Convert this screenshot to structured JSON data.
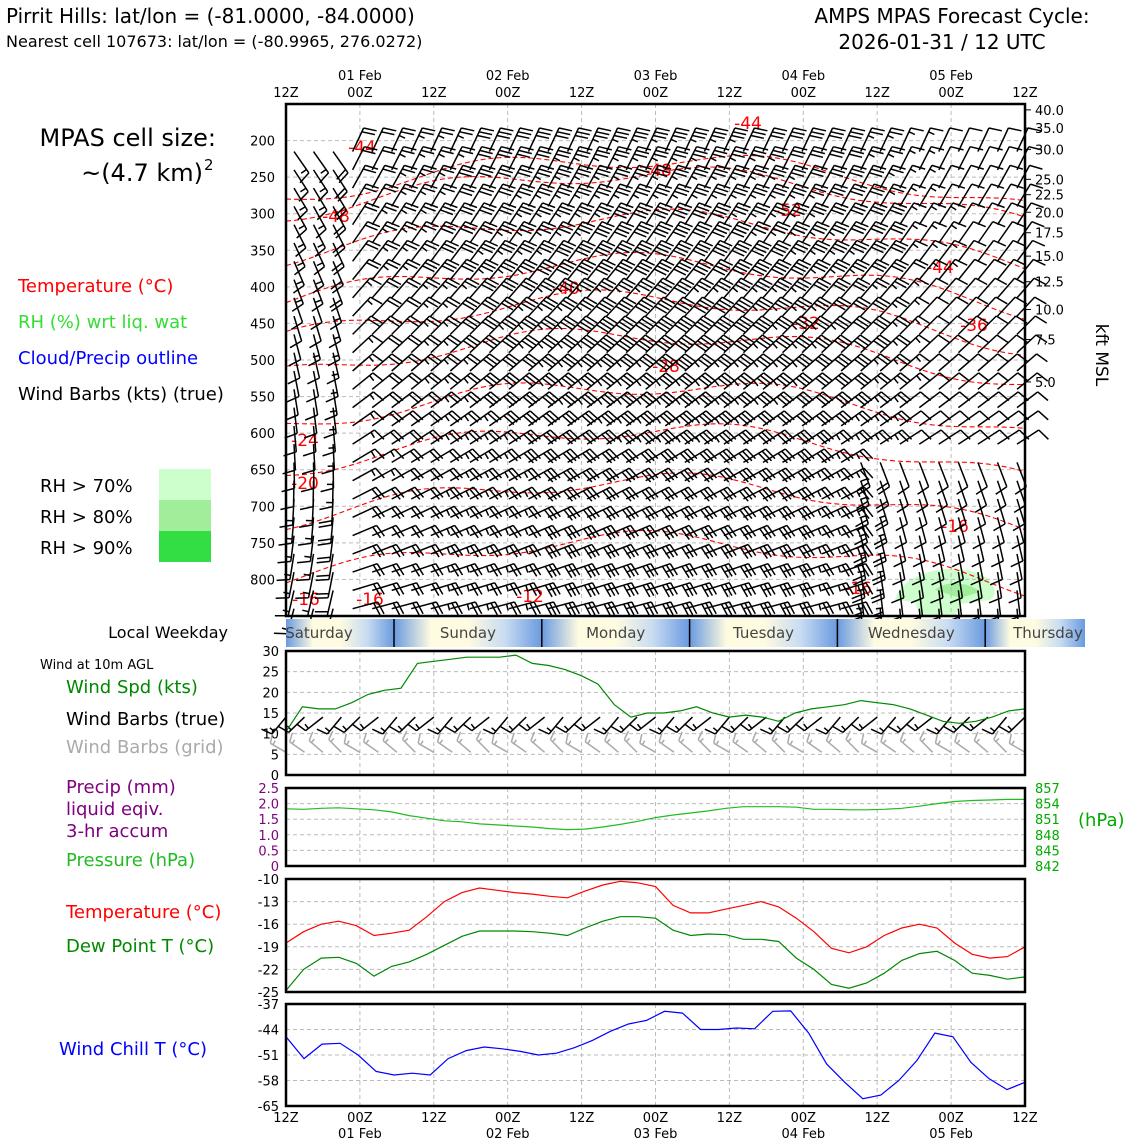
{
  "header": {
    "title": "Pirrit Hills: lat/lon = (-81.0000, -84.0000)",
    "subtitle": "Nearest cell 107673: lat/lon = (-80.9965, 276.0272)",
    "cycle_label": "AMPS MPAS Forecast Cycle:",
    "cycle_time": "2026-01-31 / 12 UTC"
  },
  "cell_size": {
    "line1": "MPAS cell size:",
    "line2": "~(4.7 km)",
    "sup": "2"
  },
  "legend_main": [
    {
      "text": "Temperature (°C)",
      "color": "#ff0000"
    },
    {
      "text": "RH (%) wrt liq. wat",
      "color": "#33dd33"
    },
    {
      "text": "Cloud/Precip outline",
      "color": "#0000ff"
    },
    {
      "text": "Wind Barbs (kts) (true)",
      "color": "#000000"
    }
  ],
  "rh_legend": [
    {
      "text": "RH > 70%",
      "color": "#ccffcc"
    },
    {
      "text": "RH > 80%",
      "color": "#a0ee9a"
    },
    {
      "text": "RH > 90%",
      "color": "#33dd44"
    }
  ],
  "time_axis": {
    "ticks": [
      "12Z",
      "00Z",
      "12Z",
      "00Z",
      "12Z",
      "00Z",
      "12Z",
      "00Z",
      "12Z",
      "00Z",
      "12Z"
    ],
    "dates": [
      "01 Feb",
      "02 Feb",
      "03 Feb",
      "04 Feb",
      "05 Feb"
    ]
  },
  "weekday": {
    "label": "Local Weekday",
    "days": [
      "Saturday",
      "Sunday",
      "Monday",
      "Tuesday",
      "Wednesday",
      "Thursday"
    ]
  },
  "sfc_wind_legend": [
    {
      "text": "Wind at 10m AGL",
      "color": "#000000"
    },
    {
      "text": "Wind Spd (kts)",
      "color": "#008800"
    },
    {
      "text": "Wind Barbs (true)",
      "color": "#000000"
    },
    {
      "text": "Wind Barbs (grid)",
      "color": "#aaaaaa"
    }
  ],
  "precip_legend": [
    {
      "text": "Precip (mm)",
      "color": "#800080"
    },
    {
      "text": "liquid eqiv.",
      "color": "#800080"
    },
    {
      "text": "3-hr accum",
      "color": "#800080"
    },
    {
      "text": "Pressure (hPa)",
      "color": "#22bb22"
    }
  ],
  "temp_legend": [
    {
      "text": "Temperature (°C)",
      "color": "#ff0000"
    },
    {
      "text": "Dew Point T (°C)",
      "color": "#008800"
    }
  ],
  "chill_legend": [
    {
      "text": "Wind Chill T (°C)",
      "color": "#0000ff"
    }
  ],
  "chart_data": [
    {
      "type": "contour",
      "name": "upper-air",
      "ylabel_right": "kft MSL",
      "y_left_ticks": [
        "200",
        "250",
        "300",
        "350",
        "400",
        "450",
        "500",
        "550",
        "600",
        "650",
        "700",
        "750",
        "800"
      ],
      "y_right_ticks": [
        "40.0",
        "35.0",
        "30.0",
        "25.0",
        "22.5",
        "20.0",
        "17.5",
        "15.0",
        "12.5",
        "10.0",
        "7.5",
        "5.0"
      ],
      "ylim": [
        150,
        850
      ],
      "temp_labels": [
        "-44",
        "-44",
        "-48",
        "-48",
        "-52",
        "-44",
        "-40",
        "-36",
        "-32",
        "-28",
        "-24",
        "-20",
        "-16",
        "-16",
        "-16",
        "-12",
        "-16"
      ],
      "isotherm_levels": [
        -48,
        -44,
        -40,
        -36,
        -32,
        -28,
        -24,
        -20,
        -16,
        -12
      ],
      "isotherm_p0": [
        280,
        300,
        360,
        420,
        470,
        520,
        590,
        650,
        720,
        800
      ],
      "wind_speed_kts": [
        20,
        30,
        35,
        40,
        30,
        25,
        20
      ],
      "color_temp": "#ff0000"
    },
    {
      "type": "line",
      "name": "10m-wind",
      "yticks": [
        "0",
        "5",
        "10",
        "15",
        "20",
        "25",
        "30"
      ],
      "ylim": [
        0,
        30
      ],
      "series": [
        {
          "color": "#008800",
          "values": [
            10.5,
            16.5,
            16,
            16,
            17.5,
            19.5,
            20.5,
            21,
            27,
            27.5,
            28,
            28.5,
            28.5,
            28.5,
            29,
            27,
            26.5,
            25.5,
            24,
            22,
            17,
            14,
            15,
            15,
            15.5,
            16.5,
            15,
            14,
            14.5,
            14,
            13,
            15,
            16,
            16.5,
            17,
            18,
            17.5,
            17,
            16,
            14.5,
            13,
            12.5,
            13,
            14,
            15.5,
            16
          ]
        }
      ],
      "barb_speed_kts": 15,
      "color_barb_true": "#000000",
      "color_barb_grid": "#aaaaaa"
    },
    {
      "type": "line",
      "name": "precip-pressure",
      "yticks_left": [
        "0",
        "0.5",
        "1.0",
        "1.5",
        "2.0",
        "2.5"
      ],
      "ylim_left": [
        0,
        2.5
      ],
      "yticks_right": [
        "842",
        "845",
        "848",
        "851",
        "854",
        "857"
      ],
      "ylabel_right": "(hPa)",
      "ylim_right": [
        842,
        857
      ],
      "series": [
        {
          "color": "#22bb22",
          "values": [
            853,
            852.9,
            853.1,
            853.2,
            853,
            852.8,
            852.4,
            851.7,
            851.2,
            850.7,
            850.5,
            850.1,
            849.9,
            849.7,
            849.5,
            849.2,
            849,
            849.1,
            849.5,
            850,
            850.6,
            851.3,
            851.8,
            852.2,
            852.6,
            853.1,
            853.4,
            853.4,
            853.4,
            853.3,
            852.9,
            852.9,
            852.8,
            852.8,
            852.9,
            853.1,
            853.5,
            854,
            854.4,
            854.6,
            854.7,
            854.8,
            854.8
          ]
        }
      ],
      "left_color": "#800080",
      "right_color": "#00aa00"
    },
    {
      "type": "line",
      "name": "temp-dewpoint",
      "yticks": [
        "-10",
        "-13",
        "-16",
        "-19",
        "-22",
        "-25"
      ],
      "ylim": [
        -25,
        -10
      ],
      "series": [
        {
          "color": "#ff0000",
          "values": [
            -18.5,
            -17,
            -16,
            -15.6,
            -16.2,
            -17.5,
            -17.2,
            -16.8,
            -15,
            -13,
            -11.8,
            -11.2,
            -11.5,
            -11.8,
            -12,
            -12.3,
            -12.5,
            -11.6,
            -10.8,
            -10.3,
            -10.5,
            -11,
            -13.5,
            -14.5,
            -14.5,
            -14,
            -13.5,
            -13,
            -13.7,
            -15.2,
            -17,
            -19.2,
            -19.8,
            -19,
            -17.5,
            -16.5,
            -16,
            -16.5,
            -18.5,
            -20,
            -20.5,
            -20.3,
            -19
          ]
        },
        {
          "color": "#008800",
          "values": [
            -24.8,
            -22,
            -20.5,
            -20.4,
            -21.2,
            -22.9,
            -21.6,
            -21,
            -20,
            -18.8,
            -17.6,
            -16.9,
            -16.9,
            -16.9,
            -17,
            -17.2,
            -17.5,
            -16.5,
            -15.6,
            -15,
            -15,
            -15.2,
            -16.8,
            -17.5,
            -17.3,
            -17.4,
            -18,
            -18,
            -18.3,
            -20.5,
            -22,
            -24,
            -24.5,
            -23.8,
            -22.5,
            -20.8,
            -19.9,
            -19.6,
            -20.8,
            -22.5,
            -22.8,
            -23.3,
            -23
          ]
        }
      ]
    },
    {
      "type": "line",
      "name": "wind-chill",
      "yticks": [
        "-37",
        "-44",
        "-51",
        "-58",
        "-65"
      ],
      "ylim": [
        -65,
        -37
      ],
      "series": [
        {
          "color": "#0000ff",
          "values": [
            -46,
            -52,
            -48,
            -47.8,
            -51,
            -55.5,
            -56.5,
            -56,
            -56.5,
            -52,
            -49.8,
            -48.8,
            -49.3,
            -50,
            -51,
            -50.5,
            -49,
            -47,
            -44.5,
            -42.5,
            -41.5,
            -39,
            -39.5,
            -44,
            -44,
            -43.6,
            -43.8,
            -39,
            -38.9,
            -45,
            -53.5,
            -58.5,
            -63,
            -62,
            -58,
            -52.5,
            -45,
            -46,
            -53,
            -57.5,
            -60.5,
            -58.5
          ]
        }
      ]
    }
  ]
}
